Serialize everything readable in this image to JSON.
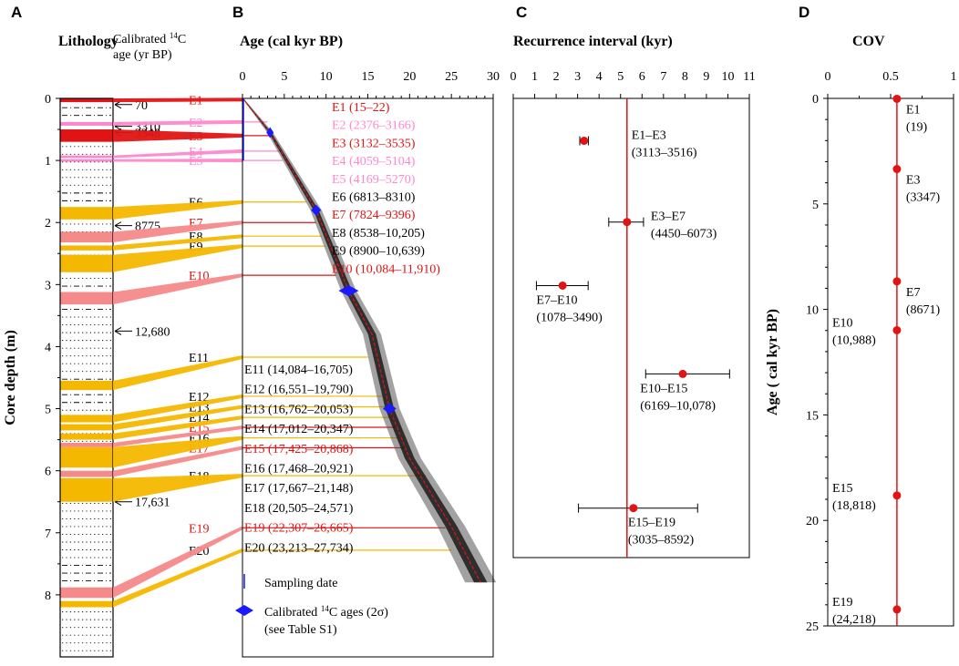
{
  "colors": {
    "red": "#e01414",
    "pink": "#ff88cc",
    "orange": "#f5b800",
    "salmon": "#f58a8a",
    "blue": "#1a1aff",
    "black": "#000000"
  },
  "panel_letters": [
    "A",
    "B",
    "C",
    "D"
  ],
  "chart_data": [
    {
      "type": "lithology-column",
      "panel": "A",
      "title": "Lithology",
      "ylabel": "Core depth (m)",
      "ylim": [
        0,
        9
      ],
      "yticks": [
        "0",
        "1",
        "2",
        "3",
        "4",
        "5",
        "6",
        "7",
        "8"
      ],
      "c14_header": [
        "Calibrated ",
        "14",
        "C",
        "age (yr BP)"
      ],
      "c14_points": [
        {
          "label": "70",
          "depth": 0.1
        },
        {
          "label": "3310",
          "depth": 0.45
        },
        {
          "label": "3348",
          "depth": 0.55
        },
        {
          "label": "8775",
          "depth": 2.05
        },
        {
          "label": "12,680",
          "depth": 3.75
        },
        {
          "label": "17,631",
          "depth": 6.5
        }
      ],
      "events": [
        {
          "name": "E1",
          "color": "red",
          "depth_top": 0.0,
          "depth_bot": 0.06,
          "label_depth": 0.02,
          "age": 0.02
        },
        {
          "name": "E2",
          "color": "pink",
          "depth_top": 0.38,
          "depth_bot": 0.44,
          "label_depth": 0.38,
          "age": 3.0
        },
        {
          "name": "E3",
          "color": "red",
          "depth_top": 0.5,
          "depth_bot": 0.7,
          "label_depth": 0.6,
          "age": 3.3
        },
        {
          "name": "E4",
          "color": "pink",
          "depth_top": 0.92,
          "depth_bot": 0.96,
          "label_depth": 0.85,
          "age": 4.5
        },
        {
          "name": "E5",
          "color": "pink",
          "depth_top": 0.98,
          "depth_bot": 1.02,
          "label_depth": 1.0,
          "age": 4.8
        },
        {
          "name": "E6",
          "color": "orange",
          "depth_top": 1.75,
          "depth_bot": 1.95,
          "label_depth": 1.67,
          "age": 7.6
        },
        {
          "name": "E7",
          "color": "salmon",
          "depth_top": 2.15,
          "depth_bot": 2.32,
          "label_depth": 2.0,
          "age": 8.8
        },
        {
          "name": "E8",
          "color": "orange",
          "depth_top": 2.37,
          "depth_bot": 2.45,
          "label_depth": 2.22,
          "age": 9.5
        },
        {
          "name": "E9",
          "color": "orange",
          "depth_top": 2.52,
          "depth_bot": 2.8,
          "label_depth": 2.38,
          "age": 9.9
        },
        {
          "name": "E10",
          "color": "salmon",
          "depth_top": 3.12,
          "depth_bot": 3.32,
          "label_depth": 2.85,
          "age": 11.2
        },
        {
          "name": "E11",
          "color": "orange",
          "depth_top": 4.55,
          "depth_bot": 4.7,
          "label_depth": 4.17,
          "age": 15.0
        },
        {
          "name": "E12",
          "color": "orange",
          "depth_top": 5.1,
          "depth_bot": 5.22,
          "label_depth": 4.8,
          "age": 17.0
        },
        {
          "name": "E13",
          "color": "orange",
          "depth_top": 5.25,
          "depth_bot": 5.35,
          "label_depth": 4.97,
          "age": 17.5
        },
        {
          "name": "E14",
          "color": "orange",
          "depth_top": 5.4,
          "depth_bot": 5.5,
          "label_depth": 5.14,
          "age": 17.9
        },
        {
          "name": "E15",
          "color": "salmon",
          "depth_top": 5.55,
          "depth_bot": 5.62,
          "label_depth": 5.3,
          "age": 18.3
        },
        {
          "name": "E16",
          "color": "orange",
          "depth_top": 5.62,
          "depth_bot": 5.95,
          "label_depth": 5.47,
          "age": 19.0
        },
        {
          "name": "E17",
          "color": "salmon",
          "depth_top": 6.0,
          "depth_bot": 6.1,
          "label_depth": 5.63,
          "age": 19.5
        },
        {
          "name": "E18",
          "color": "orange",
          "depth_top": 6.12,
          "depth_bot": 6.5,
          "label_depth": 6.08,
          "age": 22.0
        },
        {
          "name": "E19",
          "color": "salmon",
          "depth_top": 7.88,
          "depth_bot": 8.05,
          "label_depth": 6.92,
          "age": 24.3
        },
        {
          "name": "E20",
          "color": "orange",
          "depth_top": 8.1,
          "depth_bot": 8.2,
          "label_depth": 7.28,
          "age": 25.0
        }
      ]
    },
    {
      "type": "line",
      "panel": "B",
      "title": "Age (cal kyr BP)",
      "xlim": [
        0,
        30
      ],
      "xticks": [
        "0",
        "5",
        "10",
        "15",
        "20",
        "25",
        "30"
      ],
      "age_depth_model": [
        [
          0,
          0
        ],
        [
          3.3,
          0.55
        ],
        [
          8.8,
          1.8
        ],
        [
          12.7,
          3.1
        ],
        [
          15.5,
          3.8
        ],
        [
          17.6,
          5.0
        ],
        [
          20,
          5.8
        ],
        [
          25,
          6.9
        ],
        [
          28.5,
          7.8
        ]
      ],
      "calibrated_ages": [
        {
          "age": 3.3,
          "depth": 0.55,
          "err": 0.25
        },
        {
          "age": 8.8,
          "depth": 1.8,
          "err": 0.6
        },
        {
          "age": 12.7,
          "depth": 3.1,
          "err": 1.2
        },
        {
          "age": 17.6,
          "depth": 5.0,
          "err": 0.8
        }
      ],
      "sampling_date": {
        "age": 0,
        "depth_top": 0.0,
        "depth_bot": 1.0
      },
      "event_labels": [
        {
          "text": "E1 (15–22)",
          "color": "red",
          "group": 1
        },
        {
          "text": "E2 (2376–3166)",
          "color": "pink",
          "group": 1
        },
        {
          "text": "E3 (3132–3535)",
          "color": "red",
          "group": 1
        },
        {
          "text": "E4 (4059–5104)",
          "color": "pink",
          "group": 1
        },
        {
          "text": "E5 (4169–5270)",
          "color": "pink",
          "group": 1
        },
        {
          "text": "E6 (6813–8310)",
          "color": "black",
          "group": 1
        },
        {
          "text": "E7 (7824–9396)",
          "color": "red",
          "group": 1
        },
        {
          "text": "E8 (8538–10,205)",
          "color": "black",
          "group": 1
        },
        {
          "text": "E9 (8900–10,639)",
          "color": "black",
          "group": 1
        },
        {
          "text": "E10 (10,084–11,910)",
          "color": "red",
          "group": 1
        },
        {
          "text": "E11 (14,084–16,705)",
          "color": "black",
          "group": 2
        },
        {
          "text": "E12 (16,551–19,790)",
          "color": "black",
          "group": 2
        },
        {
          "text": "E13 (16,762–20,053)",
          "color": "black",
          "group": 2
        },
        {
          "text": "E14 (17,012–20,347)",
          "color": "black",
          "group": 2
        },
        {
          "text": "E15 (17,425–20,868)",
          "color": "red",
          "group": 2
        },
        {
          "text": "E16 (17,468–20,921)",
          "color": "black",
          "group": 2
        },
        {
          "text": "E17 (17,667–21,148)",
          "color": "black",
          "group": 2
        },
        {
          "text": "E18 (20,505–24,571)",
          "color": "black",
          "group": 2
        },
        {
          "text": "E19 (22,307–26,665)",
          "color": "red",
          "group": 2
        },
        {
          "text": "E20 (23,213–27,734)",
          "color": "black",
          "group": 2
        }
      ],
      "legend": [
        {
          "symbol": "line",
          "text": "Sampling date"
        },
        {
          "symbol": "diamond",
          "text": "Calibrated ",
          "sup": "14",
          "text2": "C ages (2σ)",
          "text3": "(see Table S1)"
        }
      ]
    },
    {
      "type": "scatter",
      "panel": "C",
      "title": "Recurrence interval (kyr)",
      "xlim": [
        0,
        11
      ],
      "xticks": [
        "0",
        "1",
        "2",
        "3",
        "4",
        "5",
        "6",
        "7",
        "8",
        "9",
        "10",
        "11"
      ],
      "mean_line": 5.3,
      "points": [
        {
          "label": "E1–E3",
          "range": "(3113–3516)",
          "x": 3.3,
          "lo": 3.1,
          "hi": 3.5,
          "pos": 0.12
        },
        {
          "label": "E3–E7",
          "range": "(4450–6073)",
          "x": 5.3,
          "lo": 4.45,
          "hi": 6.07,
          "pos": 0.35
        },
        {
          "label": "E7–E10",
          "range": "(1078–3490)",
          "x": 2.3,
          "lo": 1.08,
          "hi": 3.49,
          "pos": 0.53
        },
        {
          "label": "E10–E15",
          "range": "(6169–10,078)",
          "x": 7.9,
          "lo": 6.17,
          "hi": 10.08,
          "pos": 0.78
        },
        {
          "label": "E15–E19",
          "range": "(3035–8592)",
          "x": 5.6,
          "lo": 3.04,
          "hi": 8.59,
          "pos": 1.16
        }
      ]
    },
    {
      "type": "scatter",
      "panel": "D",
      "title": "COV",
      "ylabel": "Age ( cal kyr BP)",
      "xlim": [
        0,
        1
      ],
      "xticks": [
        "0",
        "0.5",
        "1"
      ],
      "ylim": [
        0,
        25
      ],
      "yticks": [
        "0",
        "5",
        "10",
        "15",
        "20",
        "25"
      ],
      "cov_value": 0.55,
      "points": [
        {
          "label": "E1",
          "value": "(19)",
          "age": 0.019,
          "side": "right"
        },
        {
          "label": "E3",
          "value": "(3347)",
          "age": 3.347,
          "side": "right"
        },
        {
          "label": "E7",
          "value": "(8671)",
          "age": 8.671,
          "side": "right"
        },
        {
          "label": "E10",
          "value": "(10,988)",
          "age": 10.988,
          "side": "left"
        },
        {
          "label": "E15",
          "value": "(18,818)",
          "age": 18.818,
          "side": "left"
        },
        {
          "label": "E19",
          "value": "(24,218)",
          "age": 24.218,
          "side": "left"
        }
      ]
    }
  ]
}
